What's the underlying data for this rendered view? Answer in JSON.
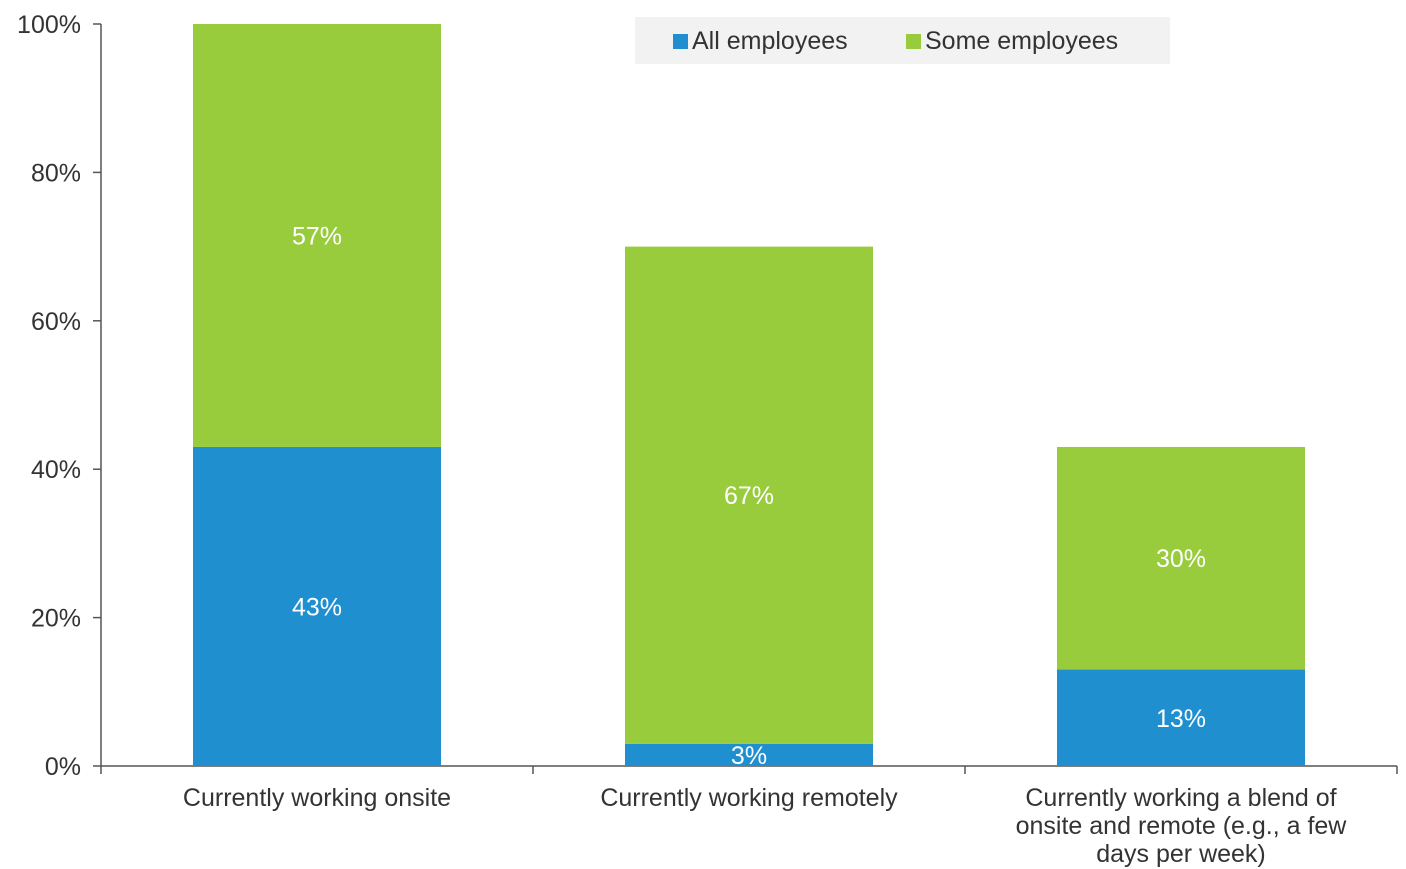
{
  "chart_data": {
    "type": "bar",
    "stacked": true,
    "categories": [
      [
        "Currently working onsite"
      ],
      [
        "Currently working remotely"
      ],
      [
        "Currently working a blend of",
        "onsite and remote (e.g., a few",
        "days per week)"
      ]
    ],
    "series": [
      {
        "name": "All employees",
        "color": "#1f8fd0",
        "values": [
          43,
          3,
          13
        ],
        "labels": [
          "43%",
          "3%",
          "13%"
        ]
      },
      {
        "name": "Some employees",
        "color": "#99cc3d",
        "values": [
          57,
          67,
          30
        ],
        "labels": [
          "57%",
          "67%",
          "30%"
        ]
      }
    ],
    "y_ticks": [
      0,
      20,
      40,
      60,
      80,
      100
    ],
    "y_tick_labels": [
      "0%",
      "20%",
      "40%",
      "60%",
      "80%",
      "100%"
    ],
    "ylim": [
      0,
      100
    ],
    "legend": {
      "placement": "top-right",
      "background": "#f2f2f2"
    },
    "grid": false
  }
}
